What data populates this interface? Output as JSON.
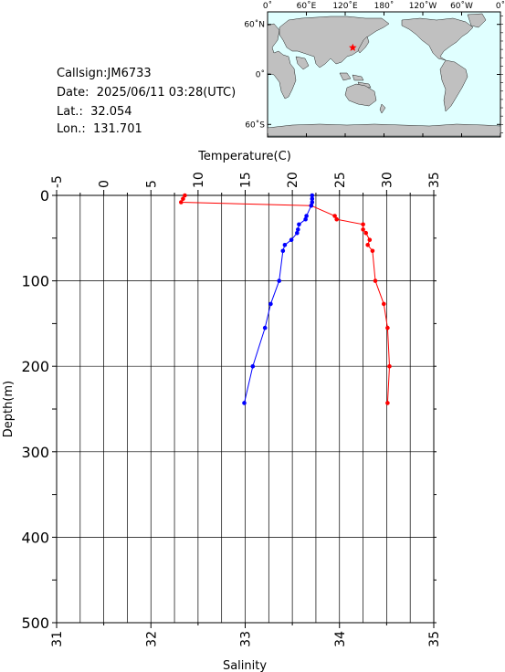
{
  "info": {
    "callsign": "Callsign:JM6733",
    "date": "Date:  2025/06/11 03:28(UTC)",
    "lat": "Lat.:  32.054",
    "lon": "Lon.:  131.701"
  },
  "map": {
    "lon_ticks": [
      "0˚",
      "60˚E",
      "120˚E",
      "180˚",
      "120˚W",
      "60˚W",
      "0˚"
    ],
    "lat_ticks": [
      "60˚N",
      "0˚",
      "60˚S"
    ],
    "ocean_color": "#e0ffff",
    "land_color": "#c0c0c0",
    "marker_color": "#ff0000",
    "marker_icon": "star-icon"
  },
  "chart_data": {
    "type": "line",
    "xlabel_top": "Temperature(C)",
    "xlabel_bottom": "Salinity",
    "ylabel": "Depth(m)",
    "temperature_ticks": [
      "-5",
      "0",
      "5",
      "10",
      "15",
      "20",
      "25",
      "30",
      "35"
    ],
    "salinity_ticks": [
      "31",
      "32",
      "33",
      "34",
      "35"
    ],
    "depth_ticks": [
      "0",
      "100",
      "200",
      "300",
      "400",
      "500"
    ],
    "temperature_range": [
      -5,
      35
    ],
    "salinity_range": [
      31,
      35
    ],
    "depth_range": [
      0,
      500
    ],
    "grid": true,
    "series": [
      {
        "axis": "temperature",
        "color": "#ff0000",
        "depth": [
          0,
          4,
          8,
          12,
          24,
          28,
          34,
          40,
          44,
          52,
          58,
          65,
          100,
          127,
          155,
          200,
          243
        ],
        "values": [
          8.6,
          8.4,
          8.2,
          22.0,
          24.5,
          24.7,
          27.5,
          27.5,
          27.8,
          28.2,
          28.0,
          28.5,
          28.8,
          29.7,
          30.1,
          30.3,
          30.1
        ]
      },
      {
        "axis": "salinity",
        "color": "#0000ff",
        "depth": [
          0,
          4,
          8,
          12,
          24,
          28,
          34,
          40,
          44,
          52,
          58,
          65,
          100,
          127,
          155,
          200,
          243
        ],
        "values": [
          33.71,
          33.71,
          33.71,
          33.7,
          33.65,
          33.64,
          33.57,
          33.56,
          33.55,
          33.49,
          33.42,
          33.4,
          33.36,
          33.27,
          33.21,
          33.08,
          32.99
        ]
      }
    ]
  }
}
